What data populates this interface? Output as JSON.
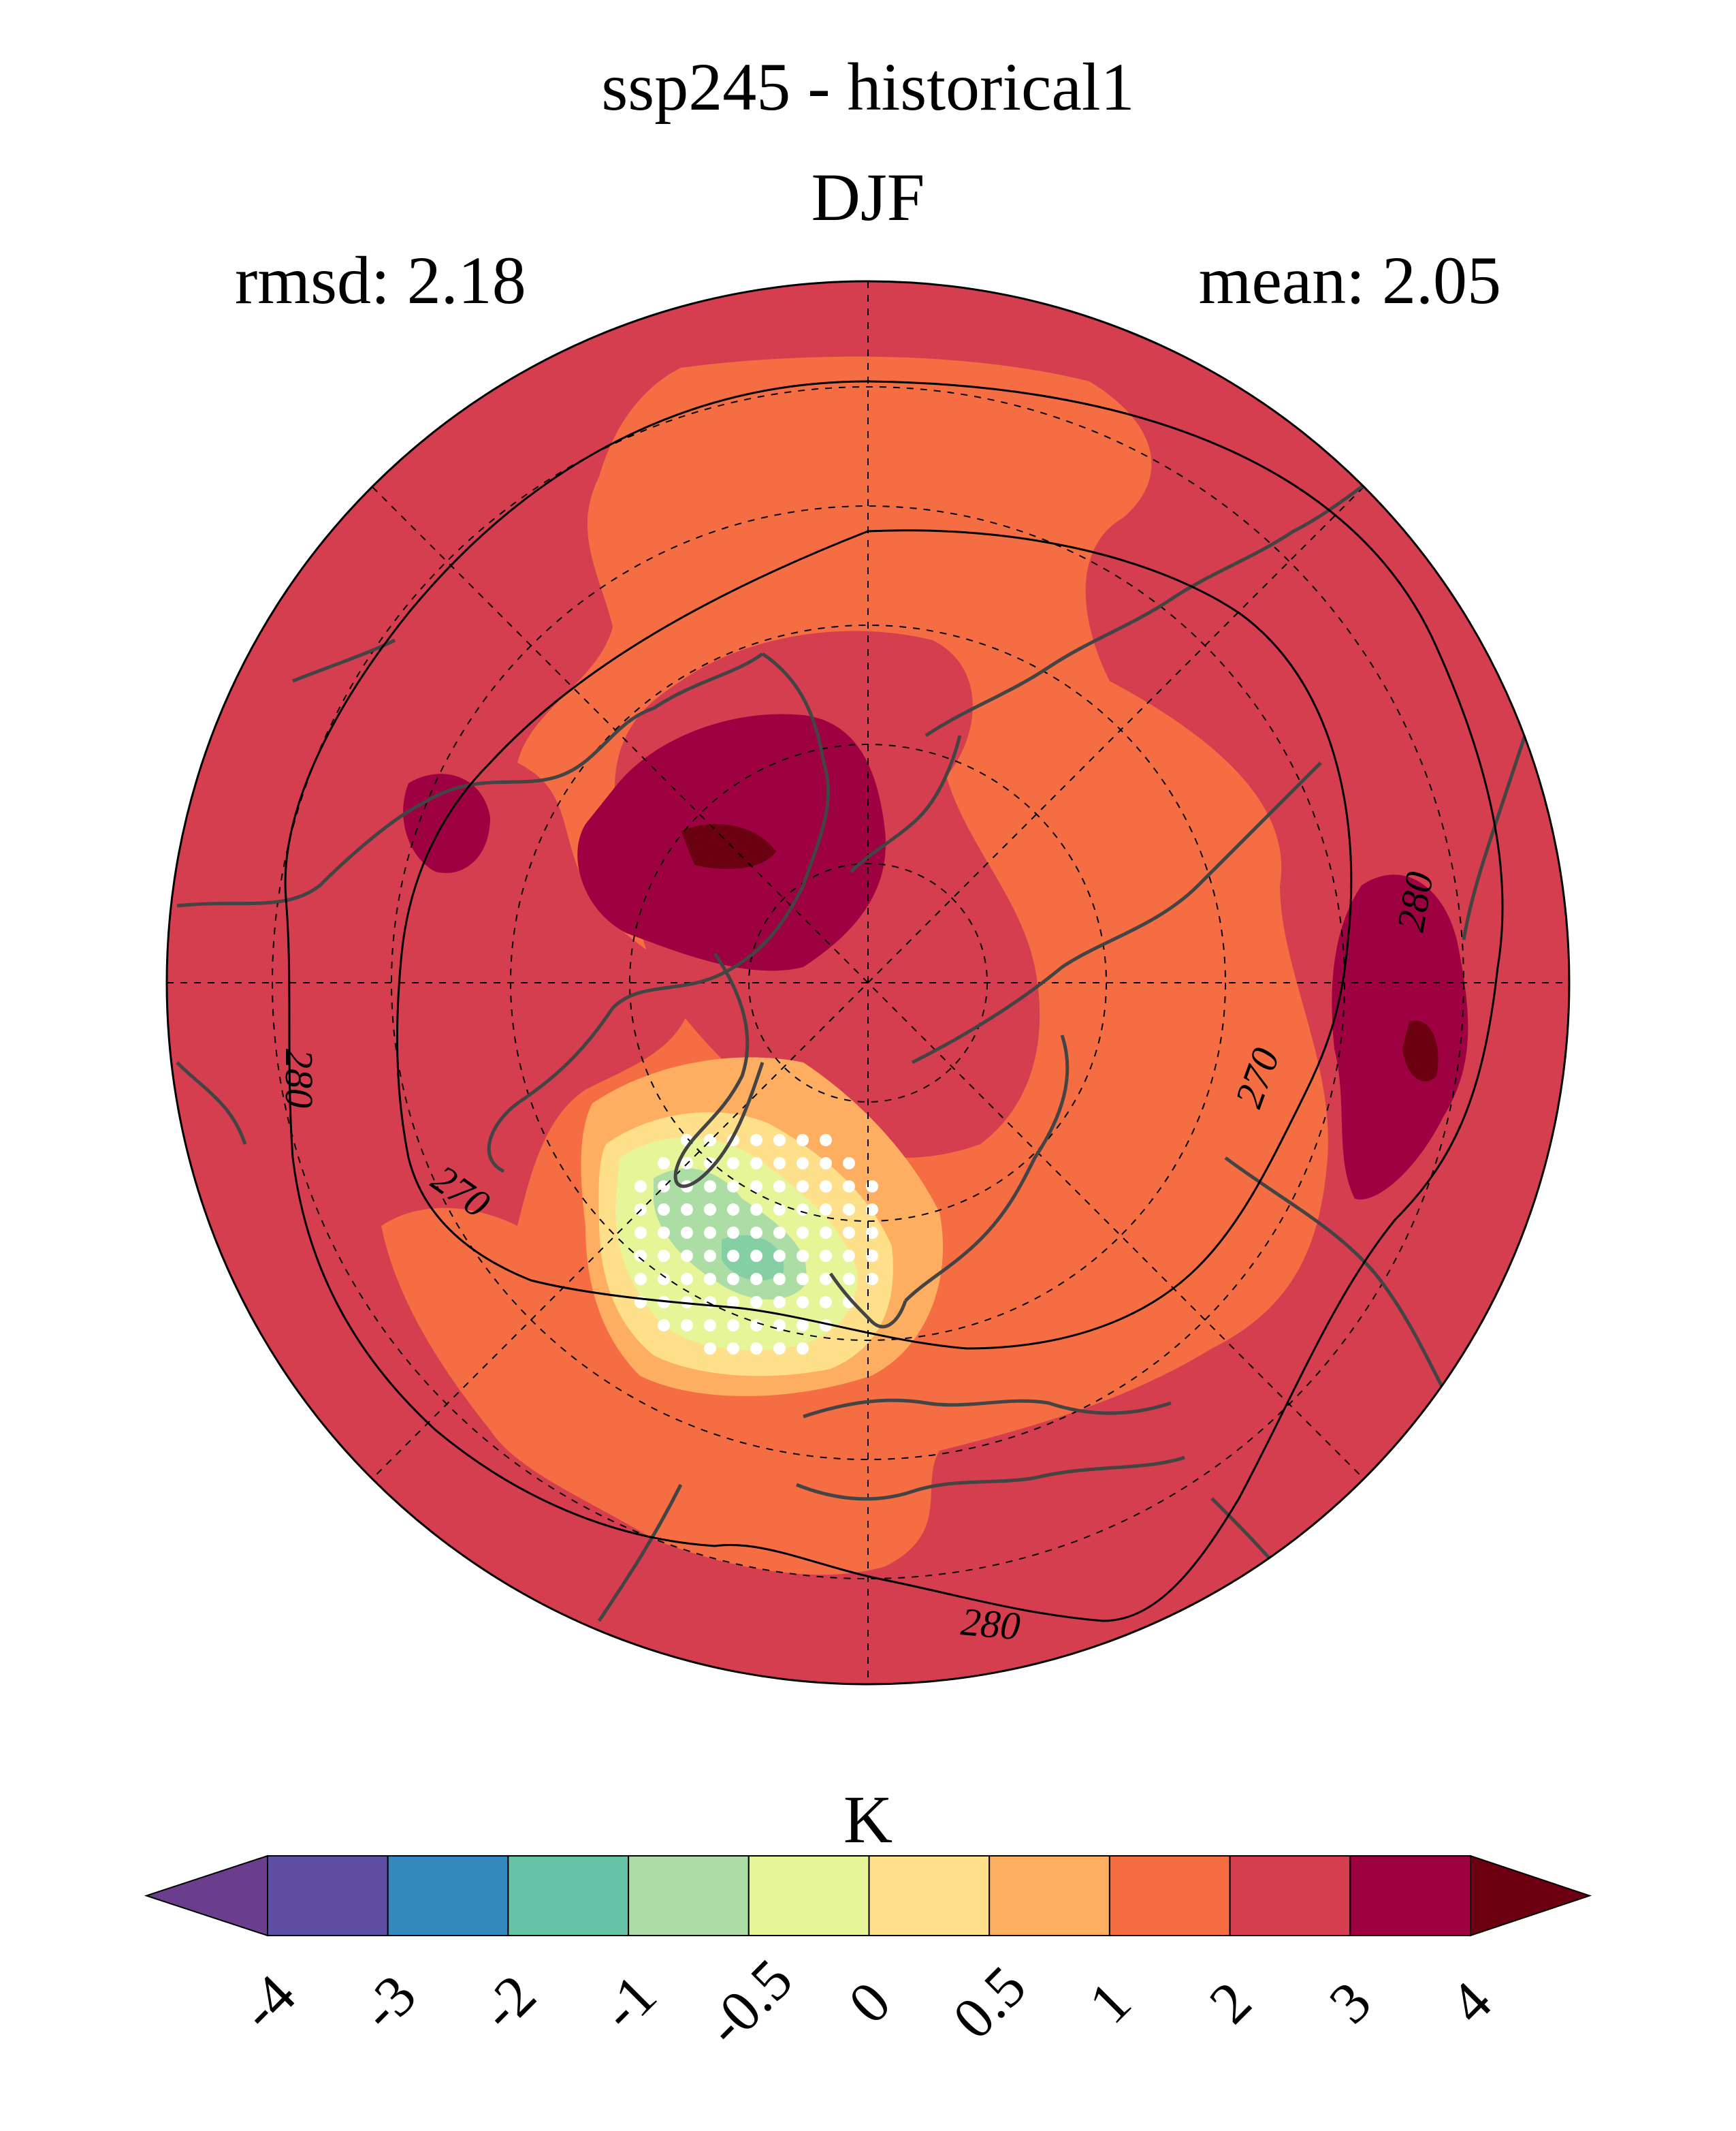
{
  "header": {
    "title": "ssp245 - historical1",
    "season": "DJF",
    "rmsd_label": "rmsd: 2.18",
    "mean_label": "mean: 2.05"
  },
  "map": {
    "projection": "north-polar-stereographic",
    "contour_labels": [
      "280",
      "270",
      "270",
      "280",
      "280",
      "270"
    ],
    "stippling": "white dots where not significant"
  },
  "colorbar": {
    "unit": "K",
    "ticks": [
      "-4",
      "-3",
      "-2",
      "-1",
      "-0.5",
      "0",
      "0.5",
      "1",
      "2",
      "3",
      "4"
    ],
    "colors": [
      "#5e4fa2",
      "#3288bd",
      "#66c2a5",
      "#abdda4",
      "#e6f598",
      "#fee08b",
      "#fdae61",
      "#f46d43",
      "#d53e4f",
      "#9e0142"
    ],
    "extend_low_color": "#6a3d8f",
    "extend_high_color": "#6b0010"
  }
}
